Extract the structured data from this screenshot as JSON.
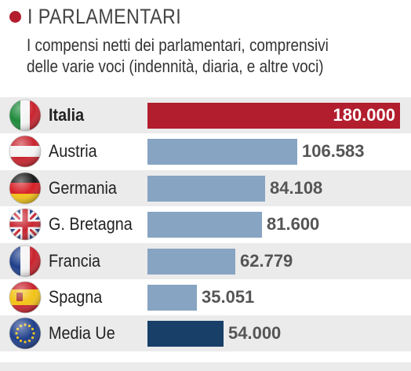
{
  "header": {
    "title": "I PARLAMENTARI",
    "subtitle": "I compensi netti dei parlamentari, comprensivi\ndelle varie voci (indennità, diaria, e altre voci)"
  },
  "colors": {
    "accent": "#b21e2e",
    "bar_default": "#87a4c2",
    "bar_average": "#173f68"
  },
  "chart_data": {
    "type": "bar",
    "orientation": "horizontal",
    "title": "I PARLAMENTARI",
    "subtitle": "I compensi netti dei parlamentari, comprensivi delle varie voci (indennità, diaria, e altre voci)",
    "categories": [
      "Italia",
      "Austria",
      "Germania",
      "G. Bretagna",
      "Francia",
      "Spagna",
      "Media Ue"
    ],
    "values": [
      180000,
      106583,
      84108,
      81600,
      62779,
      35051,
      54000
    ],
    "value_labels": [
      "180.000",
      "106.583",
      "84.108",
      "81.600",
      "62.779",
      "35.051",
      "54.000"
    ],
    "bar_colors": [
      "#b21e2e",
      "#87a4c2",
      "#87a4c2",
      "#87a4c2",
      "#87a4c2",
      "#87a4c2",
      "#173f68"
    ],
    "flag_icons": [
      "italy-flag-icon",
      "austria-flag-icon",
      "germany-flag-icon",
      "uk-flag-icon",
      "france-flag-icon",
      "spain-flag-icon",
      "eu-flag-icon"
    ],
    "highlight_index": 0,
    "xlim": [
      0,
      180000
    ],
    "grid": false,
    "legend": "none"
  }
}
